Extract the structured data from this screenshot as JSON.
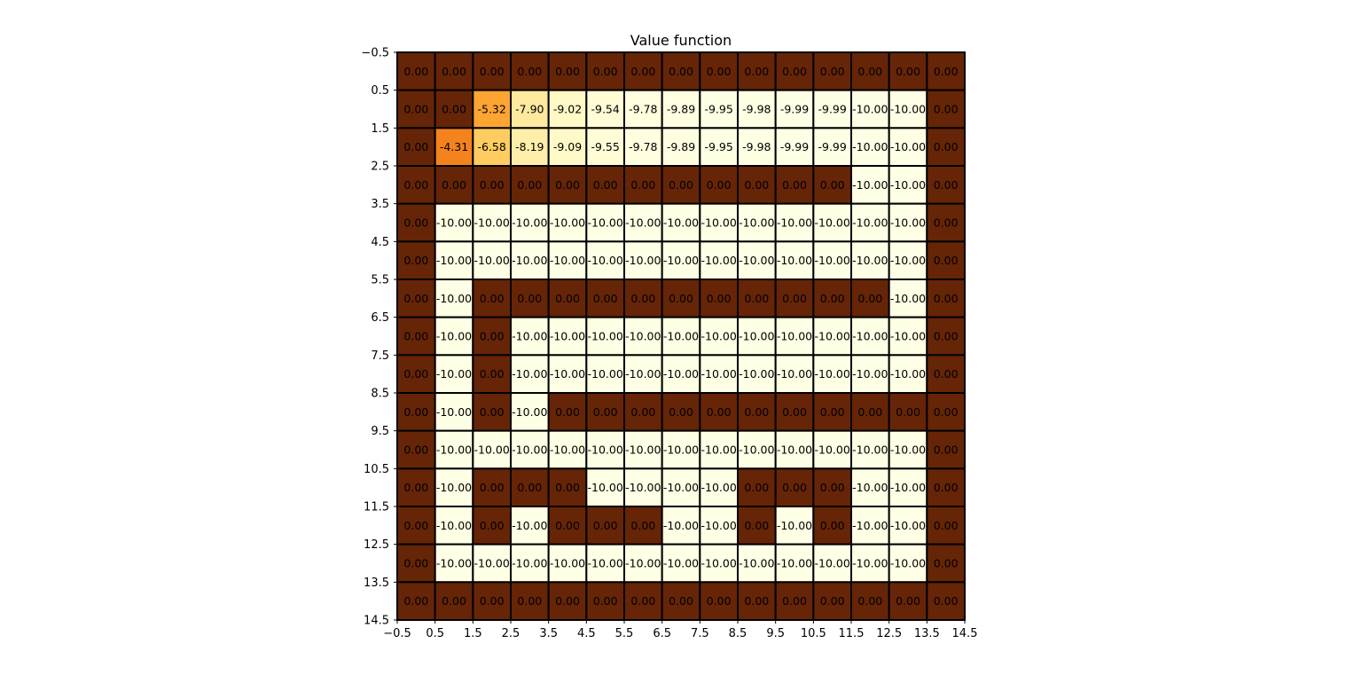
{
  "chart_data": {
    "type": "heatmap",
    "title": "Value function",
    "xlabel": "",
    "ylabel": "",
    "xlim": [
      -0.5,
      14.5
    ],
    "ylim": [
      14.5,
      -0.5
    ],
    "x_ticks": [
      "−0.5",
      "0.5",
      "1.5",
      "2.5",
      "3.5",
      "4.5",
      "5.5",
      "6.5",
      "7.5",
      "8.5",
      "9.5",
      "10.5",
      "11.5",
      "12.5",
      "13.5",
      "14.5"
    ],
    "y_ticks": [
      "−0.5",
      "0.5",
      "1.5",
      "2.5",
      "3.5",
      "4.5",
      "5.5",
      "6.5",
      "7.5",
      "8.5",
      "9.5",
      "10.5",
      "11.5",
      "12.5",
      "13.5",
      "14.5"
    ],
    "colormap": "YlOrBr_r",
    "colors": {
      "cell_border": "#000000",
      "text": "#000000",
      "axis": "#000000"
    },
    "grid": true,
    "legend": "none",
    "values": [
      [
        0,
        0,
        0,
        0,
        0,
        0,
        0,
        0,
        0,
        0,
        0,
        0,
        0,
        0,
        0
      ],
      [
        0,
        0,
        -5.32,
        -7.9,
        -9.02,
        -9.54,
        -9.78,
        -9.89,
        -9.95,
        -9.98,
        -9.99,
        -9.99,
        -10.0,
        -10.0,
        0
      ],
      [
        0,
        -4.31,
        -6.58,
        -8.19,
        -9.09,
        -9.55,
        -9.78,
        -9.89,
        -9.95,
        -9.98,
        -9.99,
        -9.99,
        -10.0,
        -10.0,
        0
      ],
      [
        0,
        0,
        0,
        0,
        0,
        0,
        0,
        0,
        0,
        0,
        0,
        0,
        -10.0,
        -10.0,
        0
      ],
      [
        0,
        -10.0,
        -10.0,
        -10.0,
        -10.0,
        -10.0,
        -10.0,
        -10.0,
        -10.0,
        -10.0,
        -10.0,
        -10.0,
        -10.0,
        -10.0,
        0
      ],
      [
        0,
        -10.0,
        -10.0,
        -10.0,
        -10.0,
        -10.0,
        -10.0,
        -10.0,
        -10.0,
        -10.0,
        -10.0,
        -10.0,
        -10.0,
        -10.0,
        0
      ],
      [
        0,
        -10.0,
        0,
        0,
        0,
        0,
        0,
        0,
        0,
        0,
        0,
        0,
        0,
        -10.0,
        0
      ],
      [
        0,
        -10.0,
        0,
        -10.0,
        -10.0,
        -10.0,
        -10.0,
        -10.0,
        -10.0,
        -10.0,
        -10.0,
        -10.0,
        -10.0,
        -10.0,
        0
      ],
      [
        0,
        -10.0,
        0,
        -10.0,
        -10.0,
        -10.0,
        -10.0,
        -10.0,
        -10.0,
        -10.0,
        -10.0,
        -10.0,
        -10.0,
        -10.0,
        0
      ],
      [
        0,
        -10.0,
        0,
        -10.0,
        0,
        0,
        0,
        0,
        0,
        0,
        0,
        0,
        0,
        0,
        0
      ],
      [
        0,
        -10.0,
        -10.0,
        -10.0,
        -10.0,
        -10.0,
        -10.0,
        -10.0,
        -10.0,
        -10.0,
        -10.0,
        -10.0,
        -10.0,
        -10.0,
        0
      ],
      [
        0,
        -10.0,
        0,
        0,
        0,
        -10.0,
        -10.0,
        -10.0,
        -10.0,
        0,
        0,
        0,
        -10.0,
        -10.0,
        0
      ],
      [
        0,
        -10.0,
        0,
        -10.0,
        0,
        0,
        0,
        -10.0,
        -10.0,
        0,
        -10.0,
        0,
        -10.0,
        -10.0,
        0
      ],
      [
        0,
        -10.0,
        -10.0,
        -10.0,
        -10.0,
        -10.0,
        -10.0,
        -10.0,
        -10.0,
        -10.0,
        -10.0,
        -10.0,
        -10.0,
        -10.0,
        0
      ],
      [
        0,
        0,
        0,
        0,
        0,
        0,
        0,
        0,
        0,
        0,
        0,
        0,
        0,
        0,
        0
      ]
    ]
  }
}
